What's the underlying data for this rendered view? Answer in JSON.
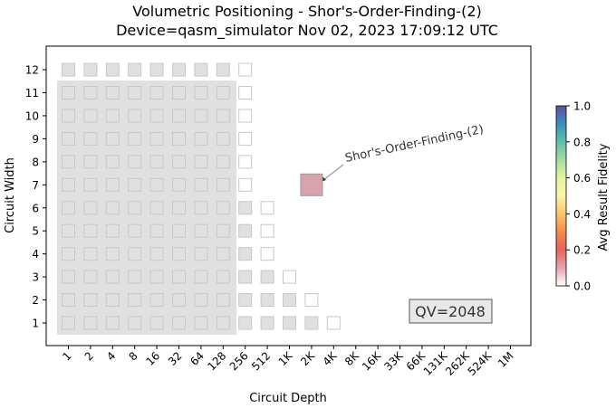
{
  "chart_data": {
    "type": "heatmap",
    "title_lines": [
      "Volumetric Positioning - Shor's-Order-Finding-(2)",
      "Device=qasm_simulator  Nov 02, 2023 17:09:12 UTC"
    ],
    "xlabel": "Circuit Depth",
    "ylabel": "Circuit Width",
    "x_ticks": [
      "1",
      "2",
      "4",
      "8",
      "16",
      "32",
      "64",
      "128",
      "256",
      "512",
      "1K",
      "2K",
      "4K",
      "8K",
      "16K",
      "33K",
      "66K",
      "131K",
      "262K",
      "524K",
      "1M"
    ],
    "y_ticks": [
      "1",
      "2",
      "3",
      "4",
      "5",
      "6",
      "7",
      "8",
      "9",
      "10",
      "11",
      "12"
    ],
    "quantum_volume": "QV=2048",
    "qv_region": {
      "max_depth": "128",
      "max_width": 11
    },
    "colorbar": {
      "label": "Avg Result Fidelity",
      "ticks": [
        "0.0",
        "0.2",
        "0.4",
        "0.6",
        "0.8",
        "1.0"
      ],
      "range": [
        0.0,
        1.0
      ]
    },
    "data_points": [
      {
        "name": "Shor's-Order-Finding-(2)",
        "depth": "2K",
        "width": 7,
        "avg_result_fidelity": 0.08,
        "color": "#d9a3ae"
      }
    ],
    "volumetric_background": {
      "filled_color": "#e0e0e0",
      "empty_color": "#ffffff",
      "columns": [
        {
          "depth": "1",
          "max_width": 12,
          "filled_max_width": 12
        },
        {
          "depth": "2",
          "max_width": 12,
          "filled_max_width": 12
        },
        {
          "depth": "4",
          "max_width": 12,
          "filled_max_width": 12
        },
        {
          "depth": "8",
          "max_width": 12,
          "filled_max_width": 12
        },
        {
          "depth": "16",
          "max_width": 12,
          "filled_max_width": 12
        },
        {
          "depth": "32",
          "max_width": 12,
          "filled_max_width": 12
        },
        {
          "depth": "64",
          "max_width": 12,
          "filled_max_width": 12
        },
        {
          "depth": "128",
          "max_width": 12,
          "filled_max_width": 12
        },
        {
          "depth": "256",
          "max_width": 12,
          "filled_max_width": 6
        },
        {
          "depth": "512",
          "max_width": 6,
          "filled_max_width": 3
        },
        {
          "depth": "1K",
          "max_width": 3,
          "filled_max_width": 2
        },
        {
          "depth": "2K",
          "max_width": 2,
          "filled_max_width": 1
        },
        {
          "depth": "4K",
          "max_width": 1,
          "filled_max_width": 0
        }
      ]
    }
  }
}
